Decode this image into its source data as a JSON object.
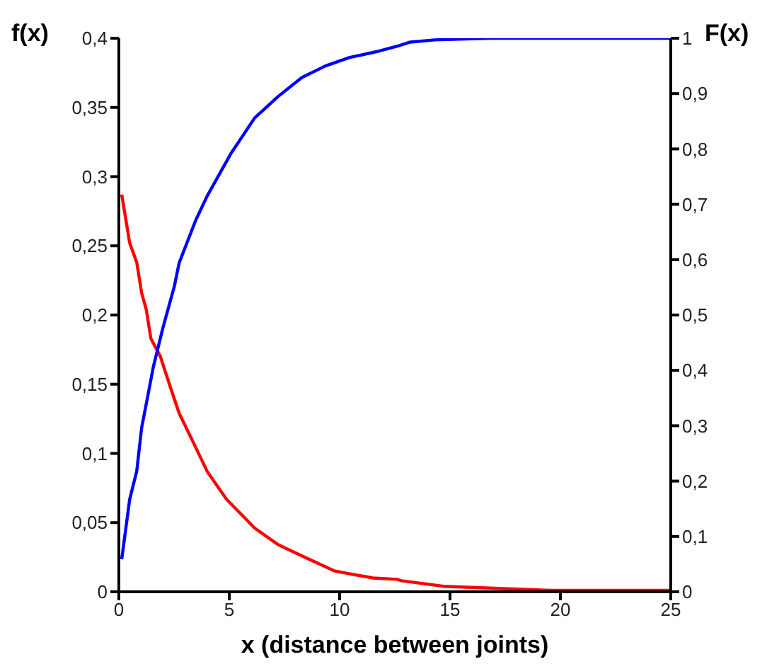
{
  "chart_data": {
    "type": "line",
    "xlabel": "x (distance between joints)",
    "ylabel": "f(x)",
    "y2label": "F(x)",
    "xlim": [
      0,
      25
    ],
    "xticks": [
      0,
      5,
      10,
      15,
      20,
      25
    ],
    "ylim": [
      0,
      0.4
    ],
    "yticks": [
      {
        "value": 0,
        "label": "0"
      },
      {
        "value": 0.05,
        "label": "0,05"
      },
      {
        "value": 0.1,
        "label": "0,1"
      },
      {
        "value": 0.15,
        "label": "0,15"
      },
      {
        "value": 0.2,
        "label": "0,2"
      },
      {
        "value": 0.25,
        "label": "0,25"
      },
      {
        "value": 0.3,
        "label": "0,3"
      },
      {
        "value": 0.35,
        "label": "0,35"
      },
      {
        "value": 0.4,
        "label": "0,4"
      }
    ],
    "y2lim": [
      0,
      1
    ],
    "y2ticks": [
      {
        "value": 0,
        "label": "0"
      },
      {
        "value": 0.1,
        "label": "0,1"
      },
      {
        "value": 0.2,
        "label": "0,2"
      },
      {
        "value": 0.3,
        "label": "0,3"
      },
      {
        "value": 0.4,
        "label": "0,4"
      },
      {
        "value": 0.5,
        "label": "0,5"
      },
      {
        "value": 0.6,
        "label": "0,6"
      },
      {
        "value": 0.7,
        "label": "0,7"
      },
      {
        "value": 0.8,
        "label": "0,8"
      },
      {
        "value": 0.9,
        "label": "0,9"
      },
      {
        "value": 1,
        "label": "1"
      }
    ],
    "grid": false,
    "legend": false,
    "marker": "none",
    "line_style": "solid",
    "series": [
      {
        "color": "#ff0000",
        "x": [
          0.13,
          0.49,
          0.81,
          1.03,
          1.24,
          1.45,
          1.88,
          2.31,
          2.73,
          3.37,
          4.0,
          4.87,
          6.15,
          7.22,
          8.29,
          9.78,
          11.5,
          12.6,
          12.8,
          14.7,
          19.6,
          25
        ],
        "values": [
          0.287,
          0.252,
          0.238,
          0.216,
          0.204,
          0.183,
          0.17,
          0.149,
          0.129,
          0.108,
          0.087,
          0.067,
          0.046,
          0.034,
          0.026,
          0.015,
          0.01,
          0.009,
          0.008,
          0.004,
          0.001,
          0.001
        ]
      },
      {
        "color": "#0000ff",
        "axis": "y2",
        "x": [
          0.13,
          0.49,
          0.81,
          1.03,
          1.35,
          1.56,
          1.99,
          2.52,
          2.73,
          3.48,
          4.0,
          5.08,
          6.15,
          7.22,
          8.29,
          9.36,
          10.43,
          11.7,
          12.56,
          13.2,
          14.3,
          16.8,
          25
        ],
        "values": [
          0.059,
          0.167,
          0.218,
          0.296,
          0.362,
          0.406,
          0.476,
          0.553,
          0.594,
          0.671,
          0.715,
          0.792,
          0.856,
          0.895,
          0.929,
          0.95,
          0.965,
          0.976,
          0.985,
          0.993,
          0.997,
          1,
          1
        ]
      }
    ]
  }
}
